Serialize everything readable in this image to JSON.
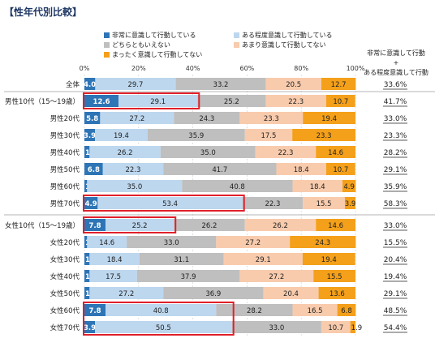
{
  "title": "【性年代別比較】",
  "colors": {
    "very": "#2e75b6",
    "somewhat": "#bdd7ee",
    "neither": "#bfbfbf",
    "notmuch": "#f8cbad",
    "notatall": "#f4a01a",
    "highlight": "#e0202a"
  },
  "right_header": {
    "line1": "非常に意識して行動",
    "line2": "+",
    "line3": "ある程度意識して行動"
  },
  "chart_data": {
    "type": "bar",
    "orientation": "horizontal-stacked-100",
    "xlim": [
      0,
      100
    ],
    "ticks": [
      "0%",
      "20%",
      "40%",
      "60%",
      "80%",
      "100%"
    ],
    "series": [
      {
        "name": "非常に意識して行動している",
        "key": "very"
      },
      {
        "name": "ある程度意識して行動している",
        "key": "somewhat"
      },
      {
        "name": "どちらともいえない",
        "key": "neither"
      },
      {
        "name": "あまり意識して行動してない",
        "key": "notmuch"
      },
      {
        "name": "まったく意識して行動してない",
        "key": "notatall"
      }
    ],
    "rows": [
      {
        "label": "全体",
        "values": [
          4.0,
          29.7,
          33.2,
          20.5,
          12.7
        ],
        "total": "33.6%",
        "highlight": false
      },
      {
        "label": "男性10代（15～19歳）",
        "values": [
          12.6,
          29.1,
          25.2,
          22.3,
          10.7
        ],
        "total": "41.7%",
        "highlight": true
      },
      {
        "label": "男性20代",
        "values": [
          5.8,
          27.2,
          24.3,
          23.3,
          19.4
        ],
        "total": "33.0%",
        "highlight": false
      },
      {
        "label": "男性30代",
        "values": [
          3.9,
          19.4,
          35.9,
          17.5,
          23.3
        ],
        "total": "23.3%",
        "highlight": false
      },
      {
        "label": "男性40代",
        "values": [
          1.9,
          26.2,
          35.0,
          22.3,
          14.6
        ],
        "total": "28.2%",
        "highlight": false
      },
      {
        "label": "男性50代",
        "values": [
          6.8,
          22.3,
          41.7,
          18.4,
          10.7
        ],
        "total": "29.1%",
        "highlight": false
      },
      {
        "label": "男性60代",
        "values": [
          1.0,
          35.0,
          40.8,
          18.4,
          4.9
        ],
        "total": "35.9%",
        "highlight": false
      },
      {
        "label": "男性70代",
        "values": [
          4.9,
          53.4,
          22.3,
          15.5,
          3.9
        ],
        "total": "58.3%",
        "highlight": true
      },
      {
        "label": "女性10代（15～19歳）",
        "values": [
          7.8,
          25.2,
          26.2,
          26.2,
          14.6
        ],
        "total": "33.0%",
        "highlight": true
      },
      {
        "label": "女性20代",
        "values": [
          1.0,
          14.6,
          33.0,
          27.2,
          24.3
        ],
        "total": "15.5%",
        "highlight": false
      },
      {
        "label": "女性30代",
        "values": [
          1.9,
          18.4,
          31.1,
          29.1,
          19.4
        ],
        "total": "20.4%",
        "highlight": false
      },
      {
        "label": "女性40代",
        "values": [
          1.9,
          17.5,
          37.9,
          27.2,
          15.5
        ],
        "total": "19.4%",
        "highlight": false
      },
      {
        "label": "女性50代",
        "values": [
          1.9,
          27.2,
          36.9,
          20.4,
          13.6
        ],
        "total": "29.1%",
        "highlight": false
      },
      {
        "label": "女性60代",
        "values": [
          7.8,
          40.8,
          28.2,
          16.5,
          6.8
        ],
        "total": "48.5%",
        "highlight": false
      },
      {
        "label": "女性70代",
        "values": [
          3.9,
          50.5,
          33.0,
          10.7,
          1.9
        ],
        "total": "54.4%",
        "highlight": false
      }
    ],
    "highlight_groups": [
      [
        1,
        1
      ],
      [
        7,
        7
      ],
      [
        8,
        8
      ],
      [
        13,
        14
      ]
    ]
  }
}
